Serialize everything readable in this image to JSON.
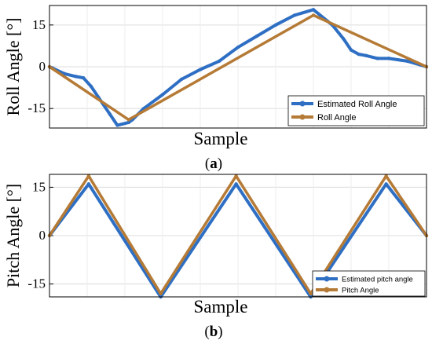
{
  "chart_data": [
    {
      "type": "line",
      "caption": "(a)",
      "caption_letter": "a",
      "ylabel": "Roll Angle [°]",
      "xlabel": "Sample",
      "ylim": [
        -22,
        22
      ],
      "xlim": [
        0,
        100
      ],
      "yticks": [
        {
          "value": 15,
          "label": "15"
        },
        {
          "value": 0,
          "label": "0"
        },
        {
          "value": -15,
          "label": "-15"
        }
      ],
      "grid": true,
      "legend_position": "bottom-right",
      "series": [
        {
          "name": "Estimated Roll Angle",
          "color": "#2e6fc4",
          "x": [
            0,
            4,
            7,
            9,
            11,
            13,
            16,
            18,
            21,
            22,
            25,
            30,
            35,
            40,
            45,
            50,
            55,
            60,
            65,
            70,
            75,
            78,
            80,
            82,
            84,
            87,
            90,
            95,
            100
          ],
          "y": [
            0,
            -2.5,
            -3.5,
            -4,
            -7,
            -11,
            -17,
            -21,
            -20,
            -19,
            -15,
            -10,
            -4.5,
            -1,
            2,
            7,
            11,
            15,
            18.5,
            20.5,
            15,
            10,
            6,
            4.5,
            4,
            3,
            3,
            2,
            0
          ]
        },
        {
          "name": "Roll Angle",
          "color": "#b57a35",
          "x": [
            0,
            21,
            70,
            100
          ],
          "y": [
            0,
            -19,
            18.5,
            0
          ]
        }
      ]
    },
    {
      "type": "line",
      "caption": "(b)",
      "caption_letter": "b",
      "ylabel": "Pitch Angle [°]",
      "xlabel": "Sample",
      "ylim": [
        -19,
        19
      ],
      "xlim": [
        0,
        100
      ],
      "yticks": [
        {
          "value": 15,
          "label": "15"
        },
        {
          "value": 0,
          "label": "0"
        },
        {
          "value": -15,
          "label": "-15"
        }
      ],
      "grid": true,
      "legend_position": "bottom-right",
      "series": [
        {
          "name": "Estimated pitch angle",
          "color": "#2e6fc4",
          "x": [
            0,
            10.4,
            29.5,
            49.5,
            69.3,
            89.3,
            100
          ],
          "y": [
            0,
            16,
            -19,
            16,
            -19,
            16,
            0
          ]
        },
        {
          "name": "Pitch Angle",
          "color": "#b57a35",
          "x": [
            0,
            10.4,
            29.5,
            49.5,
            69.3,
            89.3,
            100
          ],
          "y": [
            0,
            18.5,
            -18,
            18.5,
            -18,
            18.5,
            0
          ]
        }
      ]
    }
  ]
}
